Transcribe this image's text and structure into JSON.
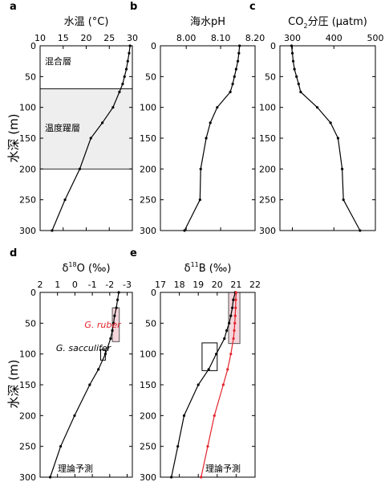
{
  "figure_y_label": "水深 (m)",
  "chart_data": [
    {
      "type": "line",
      "panel": "a",
      "title": "水温 (°C)",
      "xlim": [
        10,
        30
      ],
      "x_ticks": [
        10,
        15,
        20,
        25,
        30
      ],
      "ylim": [
        0,
        300
      ],
      "y_ticks": [
        0,
        50,
        100,
        150,
        200,
        250,
        300
      ],
      "y_inverted": true,
      "series": [
        {
          "color": "#000000",
          "x": [
            29.5,
            29.3,
            29.0,
            28.7,
            28.3,
            27.9,
            27.2,
            25.8,
            23.5,
            21.0,
            18.6,
            15.4,
            12.6
          ],
          "y": [
            0,
            12,
            25,
            38,
            50,
            62,
            75,
            100,
            125,
            150,
            200,
            250,
            300
          ]
        }
      ],
      "bands": [
        {
          "label": "混合層",
          "y": [
            0,
            70
          ],
          "fill": "#ffffff"
        },
        {
          "label": "温度躍層",
          "y": [
            70,
            200
          ],
          "fill": "#eeeeee"
        }
      ],
      "annotations": []
    },
    {
      "type": "line",
      "panel": "b",
      "title": "海水pH",
      "xlim": [
        7.925,
        8.2
      ],
      "x_ticks": [
        8.0,
        8.1,
        8.2
      ],
      "x_tick_labels": [
        "8.00",
        "8.10",
        "8.20"
      ],
      "ylim": [
        0,
        300
      ],
      "y_ticks": [
        0,
        50,
        100,
        150,
        200,
        250,
        300
      ],
      "y_inverted": true,
      "series": [
        {
          "color": "#000000",
          "x": [
            8.155,
            8.153,
            8.15,
            8.145,
            8.14,
            8.135,
            8.128,
            8.09,
            8.07,
            8.058,
            8.042,
            8.04,
            7.995
          ],
          "y": [
            0,
            12,
            25,
            38,
            50,
            62,
            75,
            100,
            125,
            150,
            200,
            250,
            300
          ]
        }
      ],
      "annotations": []
    },
    {
      "type": "line",
      "panel": "c",
      "title_parts": [
        "CO",
        "2",
        "分圧 (μatm)"
      ],
      "xlim": [
        270,
        500
      ],
      "x_ticks": [
        300,
        400,
        500
      ],
      "ylim": [
        0,
        300
      ],
      "y_ticks": [
        0,
        50,
        100,
        150,
        200,
        250,
        300
      ],
      "y_inverted": true,
      "series": [
        {
          "color": "#000000",
          "x": [
            298,
            300,
            302,
            305,
            310,
            315,
            320,
            360,
            392,
            410,
            420,
            423,
            463
          ],
          "y": [
            0,
            12,
            25,
            38,
            50,
            62,
            75,
            100,
            125,
            150,
            200,
            250,
            300
          ]
        }
      ],
      "annotations": []
    },
    {
      "type": "line",
      "panel": "d",
      "title_parts": [
        "δ",
        "18",
        "O (‰)"
      ],
      "xlim": [
        2,
        -3.3
      ],
      "x_ticks": [
        2,
        1,
        0,
        -1,
        -2,
        -3
      ],
      "ylim": [
        0,
        300
      ],
      "y_ticks": [
        0,
        50,
        100,
        150,
        200,
        250,
        300
      ],
      "y_inverted": true,
      "series": [
        {
          "name": "理論予測",
          "color": "#000000",
          "x": [
            -2.52,
            -2.45,
            -2.38,
            -2.28,
            -2.22,
            -2.15,
            -2.05,
            -1.75,
            -1.35,
            -0.85,
            0.02,
            0.82,
            1.42
          ],
          "y": [
            0,
            12,
            25,
            38,
            50,
            62,
            75,
            100,
            125,
            150,
            200,
            250,
            300
          ]
        }
      ],
      "boxes": [
        {
          "x": [
            -2.15,
            -2.55
          ],
          "y": [
            25,
            80
          ],
          "stroke": "#555555",
          "fill": "#f4d5dc"
        },
        {
          "x": [
            -1.48,
            -1.75
          ],
          "y": [
            93,
            110
          ],
          "stroke": "#000000",
          "fill": "none"
        }
      ],
      "annotations": [
        {
          "text": "G. ruber",
          "color": "#e3232c",
          "italic": true
        },
        {
          "text": "G. sacculifer",
          "color": "#000000",
          "italic": true
        },
        {
          "text": "理論予測",
          "color": "#000000",
          "italic": false
        }
      ]
    },
    {
      "type": "line",
      "panel": "e",
      "title_parts": [
        "δ",
        "11",
        "B (‰)"
      ],
      "xlim": [
        17,
        22
      ],
      "x_ticks": [
        17,
        18,
        19,
        20,
        21,
        22
      ],
      "ylim": [
        0,
        300
      ],
      "y_ticks": [
        0,
        50,
        100,
        150,
        200,
        250,
        300
      ],
      "y_inverted": true,
      "series": [
        {
          "name": "理論予測",
          "color": "#000000",
          "x": [
            20.95,
            20.85,
            20.8,
            20.72,
            20.63,
            20.5,
            20.38,
            19.95,
            19.55,
            19.0,
            18.25,
            17.92,
            17.58
          ],
          "y": [
            0,
            12,
            25,
            38,
            50,
            62,
            75,
            100,
            125,
            150,
            200,
            250,
            300
          ]
        },
        {
          "color": "#e3232c",
          "x": [
            21.0,
            20.98,
            20.97,
            20.95,
            20.93,
            20.9,
            20.86,
            20.72,
            20.55,
            20.32,
            19.85,
            19.5,
            19.15
          ],
          "y": [
            0,
            12,
            25,
            38,
            50,
            62,
            75,
            100,
            125,
            150,
            200,
            250,
            300
          ]
        }
      ],
      "boxes": [
        {
          "x": [
            20.6,
            21.2
          ],
          "y": [
            0,
            83
          ],
          "stroke": "#555555",
          "fill": "#f4d5dc"
        },
        {
          "x": [
            19.2,
            20.0
          ],
          "y": [
            82,
            127
          ],
          "stroke": "#000000",
          "fill": "none"
        }
      ],
      "annotations": [
        {
          "text": "理論予測",
          "color": "#000000",
          "italic": false
        }
      ]
    }
  ]
}
